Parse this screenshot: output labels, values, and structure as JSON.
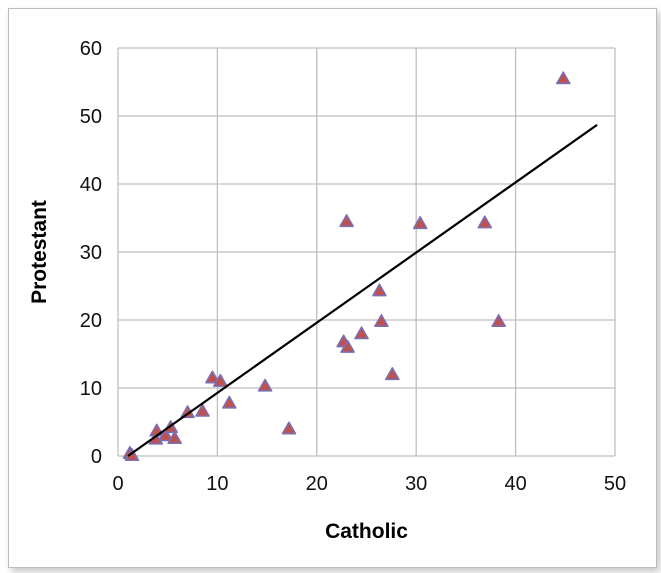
{
  "chart_data": {
    "type": "scatter",
    "title": "",
    "xlabel": "Catholic",
    "ylabel": "Protestant",
    "xlim": [
      0,
      50
    ],
    "ylim": [
      0,
      60
    ],
    "xticks": [
      "0",
      "10",
      "20",
      "30",
      "40",
      "50"
    ],
    "yticks": [
      "0",
      "10",
      "20",
      "30",
      "40",
      "50",
      "60"
    ],
    "grid": true,
    "legend": "none",
    "marker": "triangle",
    "colors": {
      "marker_fill": "#c0504d",
      "marker_edge": "#7b6fb3",
      "grid": "#bfbfbf",
      "trendline": "#000000"
    },
    "series": [
      {
        "points": [
          [
            1.2,
            0.4
          ],
          [
            1.4,
            0.1
          ],
          [
            3.8,
            2.5
          ],
          [
            3.9,
            3.7
          ],
          [
            4.8,
            3.0
          ],
          [
            5.3,
            4.2
          ],
          [
            5.7,
            2.6
          ],
          [
            7.0,
            6.4
          ],
          [
            8.5,
            6.6
          ],
          [
            9.5,
            11.5
          ],
          [
            10.3,
            11.0
          ],
          [
            11.2,
            7.8
          ],
          [
            14.8,
            10.3
          ],
          [
            17.2,
            4.0
          ],
          [
            22.7,
            16.8
          ],
          [
            23.0,
            34.5
          ],
          [
            23.1,
            16.0
          ],
          [
            24.5,
            18.0
          ],
          [
            26.3,
            24.3
          ],
          [
            26.5,
            19.8
          ],
          [
            27.6,
            12.0
          ],
          [
            30.4,
            34.2
          ],
          [
            36.9,
            34.3
          ],
          [
            38.3,
            19.8
          ],
          [
            44.8,
            55.5
          ]
        ]
      }
    ],
    "trendline": {
      "type": "linear",
      "from": [
        1.0,
        0.0
      ],
      "to": [
        48.2,
        48.7
      ]
    }
  }
}
